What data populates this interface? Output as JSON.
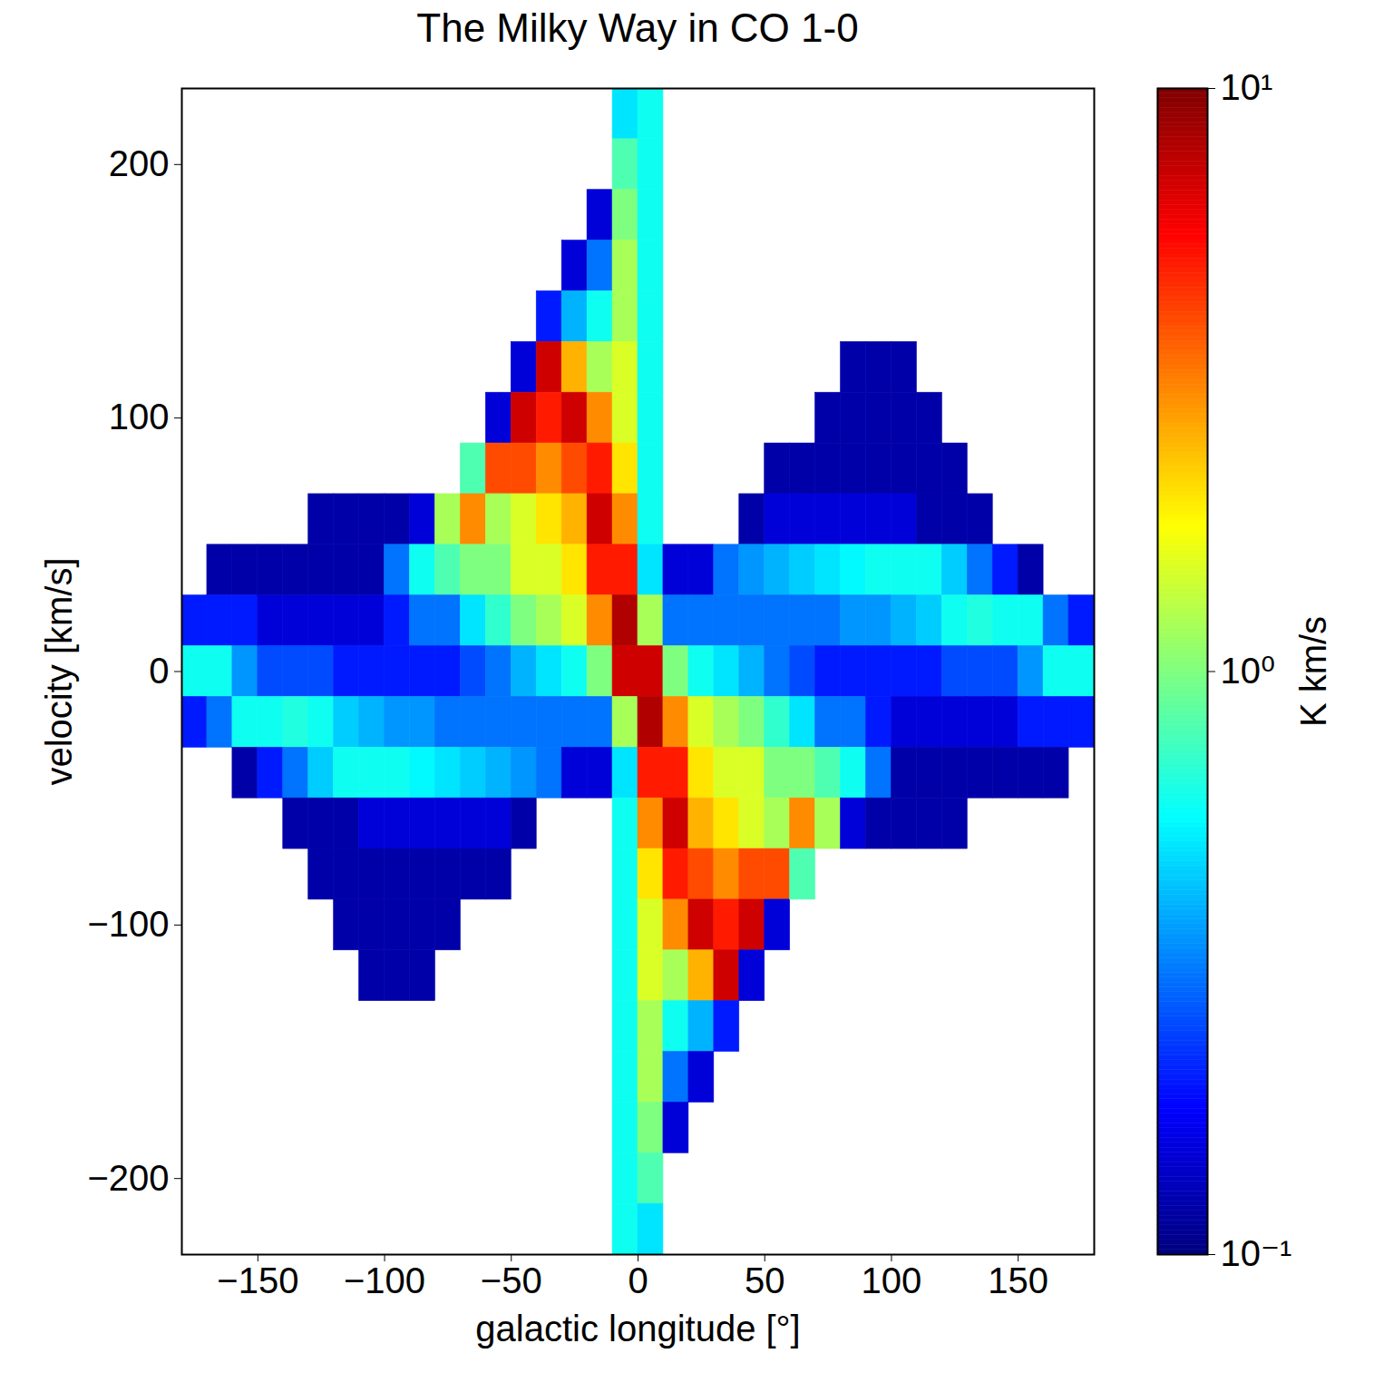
{
  "chart_data": {
    "type": "heatmap",
    "title": "The Milky Way in CO 1-0",
    "x_label": "galactic longitude [°]",
    "y_label": "velocity [km/s]",
    "xlim": [
      -180,
      180
    ],
    "ylim": [
      -230,
      230
    ],
    "xticks": [
      -150,
      -100,
      -50,
      0,
      50,
      100,
      150
    ],
    "yticks": [
      -200,
      -100,
      0,
      100,
      200
    ],
    "xbins": [
      -180,
      -170,
      -160,
      -150,
      -140,
      -130,
      -120,
      -110,
      -100,
      -90,
      -80,
      -70,
      -60,
      -50,
      -40,
      -30,
      -20,
      -10,
      0,
      10,
      20,
      30,
      40,
      50,
      60,
      70,
      80,
      90,
      100,
      110,
      120,
      130,
      140,
      150,
      160,
      170,
      180
    ],
    "ybins": [
      230,
      210,
      190,
      170,
      150,
      130,
      110,
      90,
      70,
      50,
      30,
      10,
      -10,
      -30,
      -50,
      -70,
      -90,
      -110,
      -130,
      -150,
      -170,
      -190,
      -210,
      -230
    ],
    "values": [
      [
        null,
        null,
        null,
        null,
        null,
        null,
        null,
        null,
        null,
        null,
        0.2,
        0.6,
        0.2,
        null,
        null,
        null,
        null,
        null,
        null,
        null,
        null,
        null,
        null
      ],
      [
        null,
        null,
        null,
        null,
        null,
        null,
        null,
        null,
        null,
        0.12,
        0.2,
        0.6,
        0.3,
        null,
        null,
        null,
        null,
        null,
        null,
        null,
        null,
        null,
        null
      ],
      [
        null,
        null,
        null,
        null,
        null,
        null,
        null,
        null,
        null,
        0.12,
        0.2,
        0.35,
        0.6,
        0.12,
        null,
        null,
        null,
        null,
        null,
        null,
        null,
        null,
        null
      ],
      [
        null,
        null,
        null,
        null,
        null,
        null,
        null,
        null,
        null,
        0.12,
        0.15,
        0.25,
        0.6,
        0.2,
        null,
        null,
        null,
        null,
        null,
        null,
        null,
        null,
        null
      ],
      [
        null,
        null,
        null,
        null,
        null,
        null,
        null,
        null,
        null,
        0.12,
        0.15,
        0.25,
        0.65,
        0.3,
        0.12,
        null,
        null,
        null,
        null,
        null,
        null,
        null,
        null
      ],
      [
        null,
        null,
        null,
        null,
        null,
        null,
        null,
        null,
        0.12,
        0.12,
        0.15,
        0.25,
        0.6,
        0.45,
        0.12,
        0.12,
        null,
        null,
        null,
        null,
        null,
        null,
        null
      ],
      [
        null,
        null,
        null,
        null,
        null,
        null,
        null,
        null,
        0.12,
        0.12,
        0.15,
        0.2,
        0.45,
        0.6,
        0.12,
        0.12,
        0.12,
        null,
        null,
        null,
        null,
        null,
        null
      ],
      [
        null,
        null,
        null,
        null,
        null,
        null,
        null,
        null,
        0.12,
        0.12,
        0.15,
        0.2,
        0.4,
        0.6,
        0.15,
        0.12,
        0.12,
        0.12,
        null,
        null,
        null,
        null,
        null
      ],
      [
        null,
        null,
        null,
        null,
        null,
        null,
        null,
        null,
        0.12,
        0.3,
        0.2,
        0.2,
        0.35,
        0.6,
        0.15,
        0.12,
        0.12,
        0.12,
        null,
        null,
        null,
        null,
        null
      ],
      [
        null,
        null,
        null,
        null,
        null,
        null,
        null,
        null,
        0.15,
        0.6,
        0.3,
        0.2,
        0.35,
        0.55,
        0.15,
        0.12,
        0.12,
        0.12,
        null,
        null,
        null,
        null,
        null
      ],
      [
        null,
        null,
        null,
        null,
        null,
        null,
        null,
        null,
        1.2,
        0.8,
        0.3,
        0.2,
        0.3,
        0.5,
        0.15,
        0.12,
        0.12,
        null,
        null,
        null,
        null,
        null,
        null
      ],
      [
        null,
        null,
        null,
        null,
        null,
        null,
        null,
        0.8,
        3,
        1,
        0.5,
        0.25,
        0.3,
        0.45,
        0.15,
        0.12,
        null,
        null,
        null,
        null,
        null,
        null,
        null
      ],
      [
        null,
        null,
        null,
        null,
        null,
        null,
        0.15,
        4,
        1.2,
        1,
        0.7,
        0.3,
        0.3,
        0.4,
        0.15,
        0.12,
        null,
        null,
        null,
        null,
        null,
        null,
        null
      ],
      [
        null,
        null,
        null,
        null,
        null,
        0.15,
        7,
        4,
        1.5,
        1.5,
        1,
        0.4,
        0.3,
        0.35,
        0.12,
        null,
        null,
        null,
        null,
        null,
        null,
        null,
        null
      ],
      [
        null,
        null,
        null,
        null,
        0.2,
        7,
        5,
        3,
        2,
        1.5,
        1.2,
        0.5,
        0.3,
        0.3,
        null,
        null,
        null,
        null,
        null,
        null,
        null,
        null,
        null
      ],
      [
        null,
        null,
        null,
        0.15,
        0.4,
        2.5,
        7,
        4,
        2.5,
        2,
        1.5,
        0.6,
        0.3,
        0.15,
        null,
        null,
        null,
        null,
        null,
        null,
        null,
        null,
        null
      ],
      [
        null,
        null,
        0.15,
        0.3,
        0.6,
        1.2,
        3,
        5,
        7,
        5,
        3,
        1,
        0.3,
        0.15,
        null,
        null,
        null,
        null,
        null,
        null,
        null,
        null,
        null
      ],
      [
        0.5,
        0.8,
        1,
        1.2,
        1.2,
        1.5,
        1.5,
        2,
        3,
        5,
        8,
        7,
        1.2,
        0.5,
        0.6,
        0.6,
        0.6,
        0.6,
        0.6,
        0.6,
        0.6,
        0.6,
        0.6
      ],
      [
        0.6,
        0.6,
        0.6,
        0.6,
        0.6,
        0.6,
        0.6,
        0.6,
        0.6,
        0.5,
        1.2,
        7,
        8,
        5,
        3,
        2,
        1.5,
        1.5,
        1.2,
        1.2,
        1,
        0.8,
        0.5
      ],
      [
        null,
        null,
        null,
        null,
        null,
        null,
        null,
        null,
        null,
        0.15,
        0.3,
        1,
        3,
        5,
        7,
        5,
        3,
        1.2,
        0.6,
        0.3,
        0.15,
        null,
        null
      ],
      [
        null,
        null,
        null,
        null,
        null,
        null,
        null,
        null,
        null,
        0.15,
        0.3,
        0.6,
        1.5,
        2,
        2.5,
        4,
        7,
        2.5,
        0.4,
        0.15,
        null,
        null,
        null
      ],
      [
        null,
        null,
        null,
        null,
        null,
        null,
        null,
        null,
        null,
        0.3,
        0.3,
        0.5,
        1.2,
        1.5,
        2,
        3,
        5,
        7,
        0.2,
        null,
        null,
        null,
        null
      ],
      [
        null,
        null,
        null,
        null,
        null,
        null,
        null,
        null,
        0.12,
        0.35,
        0.3,
        0.4,
        1,
        1.5,
        1.5,
        4,
        7,
        0.15,
        null,
        null,
        null,
        null,
        null
      ],
      [
        null,
        null,
        null,
        null,
        null,
        null,
        null,
        0.12,
        0.15,
        0.4,
        0.3,
        0.3,
        0.7,
        1,
        1.2,
        4,
        0.15,
        null,
        null,
        null,
        null,
        null,
        null
      ],
      [
        null,
        null,
        null,
        null,
        null,
        null,
        null,
        0.12,
        0.15,
        0.45,
        0.3,
        0.25,
        0.5,
        1,
        3,
        0.8,
        null,
        null,
        null,
        null,
        null,
        null,
        null
      ],
      [
        null,
        null,
        null,
        null,
        null,
        null,
        0.12,
        0.12,
        0.15,
        0.5,
        0.3,
        0.2,
        0.3,
        0.8,
        1.2,
        null,
        null,
        null,
        null,
        null,
        null,
        null,
        null
      ],
      [
        null,
        null,
        null,
        null,
        null,
        0.12,
        0.12,
        0.12,
        0.15,
        0.55,
        0.35,
        0.2,
        0.3,
        0.6,
        0.15,
        null,
        null,
        null,
        null,
        null,
        null,
        null,
        null
      ],
      [
        null,
        null,
        null,
        null,
        null,
        0.12,
        0.12,
        0.12,
        0.15,
        0.6,
        0.35,
        0.2,
        0.2,
        0.3,
        0.12,
        null,
        null,
        null,
        null,
        null,
        null,
        null,
        null
      ],
      [
        null,
        null,
        null,
        null,
        null,
        0.12,
        0.12,
        0.12,
        0.15,
        0.6,
        0.4,
        0.2,
        0.15,
        0.12,
        0.12,
        null,
        null,
        null,
        null,
        null,
        null,
        null,
        null
      ],
      [
        null,
        null,
        null,
        null,
        null,
        null,
        0.12,
        0.12,
        0.12,
        0.6,
        0.45,
        0.2,
        0.15,
        0.12,
        0.12,
        null,
        null,
        null,
        null,
        null,
        null,
        null,
        null
      ],
      [
        null,
        null,
        null,
        null,
        null,
        null,
        null,
        0.12,
        0.12,
        0.45,
        0.6,
        0.25,
        0.15,
        0.12,
        0.12,
        null,
        null,
        null,
        null,
        null,
        null,
        null,
        null
      ],
      [
        null,
        null,
        null,
        null,
        null,
        null,
        null,
        null,
        0.12,
        0.3,
        0.65,
        0.25,
        0.15,
        0.12,
        null,
        null,
        null,
        null,
        null,
        null,
        null,
        null,
        null
      ],
      [
        null,
        null,
        null,
        null,
        null,
        null,
        null,
        null,
        null,
        0.2,
        0.6,
        0.25,
        0.15,
        0.12,
        null,
        null,
        null,
        null,
        null,
        null,
        null,
        null,
        null
      ],
      [
        null,
        null,
        null,
        null,
        null,
        null,
        null,
        null,
        null,
        0.12,
        0.6,
        0.35,
        0.2,
        0.12,
        null,
        null,
        null,
        null,
        null,
        null,
        null,
        null,
        null
      ],
      [
        null,
        null,
        null,
        null,
        null,
        null,
        null,
        null,
        null,
        null,
        0.3,
        0.6,
        0.2,
        0.12,
        null,
        null,
        null,
        null,
        null,
        null,
        null,
        null,
        null
      ],
      [
        null,
        null,
        null,
        null,
        null,
        null,
        null,
        null,
        null,
        null,
        0.2,
        0.6,
        0.2,
        null,
        null,
        null,
        null,
        null,
        null,
        null,
        null,
        null,
        null
      ]
    ],
    "colorbar": {
      "label": "K km/s",
      "log": true,
      "lim": [
        0.1,
        10
      ],
      "ticks": [
        {
          "value": 0.1,
          "label": "10⁻¹"
        },
        {
          "value": 1,
          "label": "10⁰"
        },
        {
          "value": 10,
          "label": "10¹"
        }
      ]
    }
  }
}
